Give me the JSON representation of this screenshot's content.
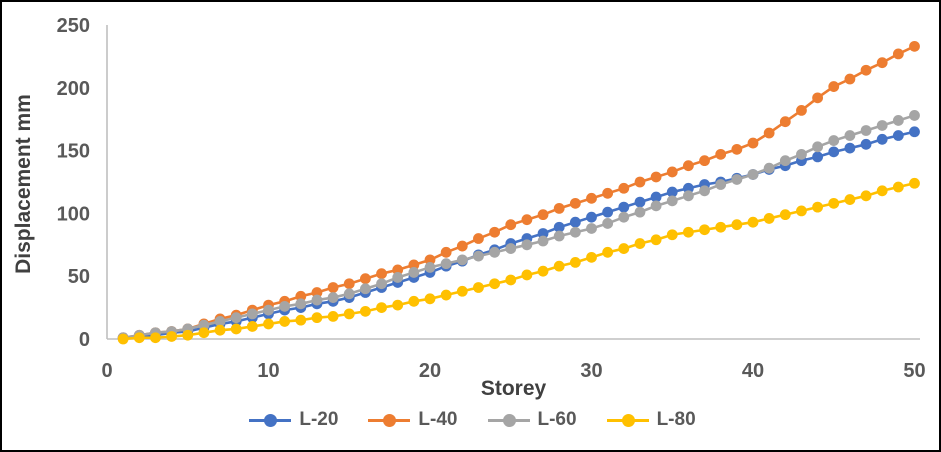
{
  "chart_data": {
    "type": "line",
    "title": "",
    "xlabel": "Storey",
    "ylabel": "Displacement mm",
    "xlim": [
      0,
      50
    ],
    "ylim": [
      0,
      250
    ],
    "x_ticks": [
      0,
      10,
      20,
      30,
      40,
      50
    ],
    "y_ticks": [
      0,
      50,
      100,
      150,
      200,
      250
    ],
    "grid": false,
    "legend_position": "bottom",
    "marker": "circle",
    "x": [
      1,
      2,
      3,
      4,
      5,
      6,
      7,
      8,
      9,
      10,
      11,
      12,
      13,
      14,
      15,
      16,
      17,
      18,
      19,
      20,
      21,
      22,
      23,
      24,
      25,
      26,
      27,
      28,
      29,
      30,
      31,
      32,
      33,
      34,
      35,
      36,
      37,
      38,
      39,
      40,
      41,
      42,
      43,
      44,
      45,
      46,
      47,
      48,
      49,
      50
    ],
    "series": [
      {
        "name": "L-20",
        "color": "#4472C4",
        "values": [
          1,
          2,
          3,
          5,
          6,
          9,
          12,
          14,
          17,
          20,
          23,
          25,
          28,
          30,
          33,
          37,
          41,
          45,
          49,
          53,
          58,
          62,
          67,
          71,
          76,
          80,
          84,
          89,
          93,
          97,
          101,
          105,
          109,
          113,
          117,
          120,
          123,
          125,
          128,
          131,
          135,
          138,
          142,
          145,
          149,
          152,
          155,
          159,
          162,
          165
        ]
      },
      {
        "name": "L-40",
        "color": "#ED7D31",
        "values": [
          1,
          3,
          5,
          6,
          8,
          12,
          16,
          19,
          23,
          27,
          30,
          34,
          37,
          41,
          44,
          48,
          52,
          55,
          59,
          63,
          69,
          74,
          80,
          85,
          91,
          95,
          99,
          104,
          108,
          112,
          116,
          120,
          125,
          129,
          133,
          138,
          142,
          147,
          151,
          156,
          164,
          173,
          182,
          192,
          201,
          207,
          214,
          220,
          227,
          233
        ]
      },
      {
        "name": "L-60",
        "color": "#A5A5A5",
        "values": [
          1,
          3,
          5,
          6,
          8,
          11,
          14,
          17,
          20,
          23,
          26,
          28,
          31,
          33,
          36,
          40,
          44,
          49,
          53,
          57,
          60,
          63,
          66,
          69,
          72,
          75,
          78,
          82,
          85,
          88,
          92,
          97,
          101,
          106,
          110,
          114,
          118,
          123,
          127,
          131,
          136,
          142,
          147,
          153,
          158,
          162,
          166,
          170,
          174,
          178
        ]
      },
      {
        "name": "L-80",
        "color": "#FFC000",
        "values": [
          0,
          1,
          1,
          2,
          3,
          5,
          7,
          8,
          10,
          12,
          14,
          15,
          17,
          18,
          20,
          22,
          25,
          27,
          30,
          32,
          35,
          38,
          41,
          44,
          47,
          51,
          54,
          58,
          61,
          65,
          69,
          72,
          76,
          79,
          83,
          85,
          87,
          89,
          91,
          93,
          96,
          99,
          102,
          105,
          108,
          111,
          114,
          118,
          121,
          124
        ]
      }
    ],
    "axis_line_color": "#BFBFBF",
    "tick_label_color": "#595959",
    "axis_title_color": "#404040"
  }
}
